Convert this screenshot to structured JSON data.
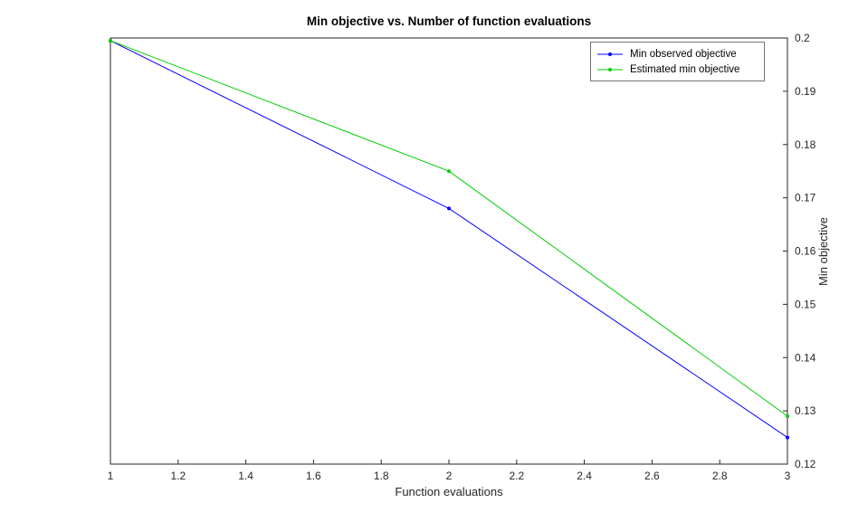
{
  "figure": {
    "background": "#ffffff"
  },
  "chart_data": {
    "type": "line",
    "title": "Min objective vs. Number of function evaluations",
    "xlabel": "Function evaluations",
    "ylabel": "Min objective",
    "xlim": [
      1,
      3
    ],
    "ylim": [
      0.12,
      0.2
    ],
    "grid": false,
    "y_axis_location": "right",
    "legend_position": "top-right-inside",
    "axis_color": "#262626",
    "x": [
      1,
      2,
      3
    ],
    "xticks": [
      1,
      1.2,
      1.4,
      1.6,
      1.8,
      2,
      2.2,
      2.4,
      2.6,
      2.8,
      3
    ],
    "xtick_labels": [
      "1",
      "1.2",
      "1.4",
      "1.6",
      "1.8",
      "2",
      "2.2",
      "2.4",
      "2.6",
      "2.8",
      "3"
    ],
    "yticks": [
      0.12,
      0.13,
      0.14,
      0.15,
      0.16,
      0.17,
      0.18,
      0.19,
      0.2
    ],
    "ytick_labels": [
      "0.12",
      "0.13",
      "0.14",
      "0.15",
      "0.16",
      "0.17",
      "0.18",
      "0.19",
      "0.2"
    ],
    "series": [
      {
        "name": "Min observed objective",
        "color": "#0000ff",
        "marker": "dot",
        "values": [
          0.1995,
          0.168,
          0.125
        ]
      },
      {
        "name": "Estimated min objective",
        "color": "#00cc00",
        "marker": "dot",
        "values": [
          0.1995,
          0.175,
          0.129
        ]
      }
    ]
  }
}
